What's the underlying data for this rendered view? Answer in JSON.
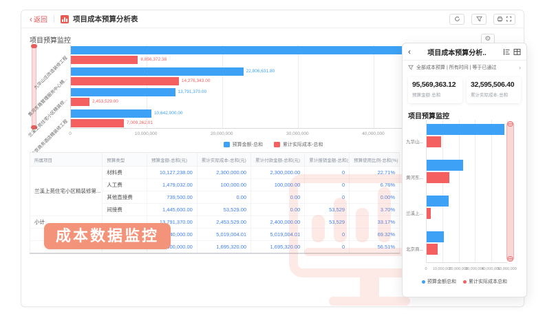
{
  "titlebar": {
    "back": "返回",
    "title": "项目成本预算分析表"
  },
  "icons": {
    "toolbar": [
      "refresh-icon",
      "filter-icon",
      "printer-icon",
      "fullscreen-icon"
    ],
    "settings": "gear-icon",
    "panel_header": [
      "chart-list-icon",
      "table-view-icon"
    ],
    "panel_filter": "funnel-icon"
  },
  "section_title": "项目预算监控",
  "badge_label": "成本数据监控",
  "colors": {
    "budget_blue": "#3da2f5",
    "actual_red": "#f4605f",
    "badge_orange": "#f2937a",
    "number_blue": "#3f80f0"
  },
  "chart_data": [
    {
      "type": "bar",
      "orientation": "horizontal-grouped",
      "title": "项目预算监控",
      "categories": [
        "九华山庄改造装修工程",
        "黄河东路管理服务中心精...",
        "兰溪上苑住宅小区精装修...",
        "北京商务酒店精装修工程"
      ],
      "series": [
        {
          "name": "预算金额-总和",
          "color": "#3da2f5",
          "values": [
            48329361.32,
            22806631.8,
            13791370.0,
            10642000.0
          ],
          "labels": [
            "",
            "22,806,631.80",
            "13,791,370.00",
            "10,642,000.00"
          ]
        },
        {
          "name": "累计实际成本-总和",
          "color": "#f4605f",
          "values": [
            8856372.38,
            14276343.0,
            2453529.0,
            7009262.01
          ],
          "labels": [
            "8,856,372.38",
            "14,276,343.00",
            "2,453,529.00",
            "7,009,262.01"
          ]
        }
      ],
      "x_ticks": [
        "0",
        "10,000,000",
        "20,000,000",
        "30,000,000",
        "40,000,000"
      ],
      "tick_values": [
        0,
        10000000,
        20000000,
        30000000,
        40000000
      ],
      "x_max": 44500000,
      "grid": true,
      "legend_position": "bottom"
    },
    {
      "type": "bar",
      "orientation": "horizontal-grouped",
      "title": "项目预算监控",
      "categories": [
        "九华山...",
        "黄河东...",
        "兰溪上...",
        "北京商..."
      ],
      "series": [
        {
          "name": "预算金额总和",
          "color": "#3da2f5",
          "values": [
            48329361.32,
            22806631.8,
            13791370.0,
            10642000.0
          ],
          "labels": [
            "",
            "",
            "",
            ""
          ]
        },
        {
          "name": "累计实际成本总和",
          "color": "#f4605f",
          "values": [
            8856372.38,
            14276343.0,
            2453529.0,
            7009262.01
          ],
          "labels": [
            "",
            "",
            "",
            ""
          ]
        }
      ],
      "x_ticks": [
        "0",
        "10,000,000",
        "20,000,000",
        "30,000,000",
        "40,000,000",
        "50,000,000"
      ],
      "tick_values": [
        0,
        10000000,
        20000000,
        30000000,
        40000000,
        50000000
      ],
      "x_max": 50000000,
      "grid": true,
      "legend_position": "bottom"
    }
  ],
  "table": {
    "headers": [
      "所属项目",
      "预算类型",
      "预算金额-总和(元)",
      "累计实际成本-总和(元)",
      "累计付款金额-总和(元)",
      "累计报销金额-总和(元)",
      "预算使用比例-总和(%)"
    ],
    "rows": [
      {
        "project": "兰溪上苑住宅小区精装修第...",
        "project_rowspan": 4,
        "type": "材料费",
        "values": [
          "10,127,238.00",
          "2,300,000.00",
          "2,300,000.00",
          "0",
          "22.71%"
        ]
      },
      {
        "type": "人工费",
        "values": [
          "1,479,032.00",
          "100,000.00",
          "100,000.00",
          "0",
          "6.76%"
        ]
      },
      {
        "type": "其他直接费",
        "values": [
          "739,500.00",
          "0.00",
          "0.00",
          "0",
          "0.00%"
        ]
      },
      {
        "type": "间接费",
        "values": [
          "1,445,600.00",
          "53,529.00",
          "0.00",
          "53,529",
          "3.70%"
        ]
      },
      {
        "project": "小计",
        "project_rowspan": 1,
        "type": "",
        "values": [
          "13,791,370.00",
          "2,453,529.00",
          "2,400,000.00",
          "53,529",
          "33.17%"
        ]
      },
      {
        "project": "",
        "project_rowspan": 1,
        "type": "材料费",
        "values": [
          "7,240,000.00",
          "5,019,004.01",
          "5,019,004.01",
          "0",
          "69.32%"
        ]
      },
      {
        "project": "",
        "project_rowspan": 1,
        "type": "",
        "values": [
          "3,000,000.00",
          "1,695,320.00",
          "1,695,320.00",
          "0",
          "56.51%"
        ]
      }
    ]
  },
  "panel": {
    "title": "项目成本预算分析..",
    "filter": "全部成本预算 | 所有时间 | 等于已通过",
    "stats": [
      {
        "value": "95,569,363.12",
        "label": "预算金额·总和"
      },
      {
        "value": "32,595,506.40",
        "label": "累计实际成本·总和"
      }
    ],
    "section_title": "项目预算监控"
  }
}
